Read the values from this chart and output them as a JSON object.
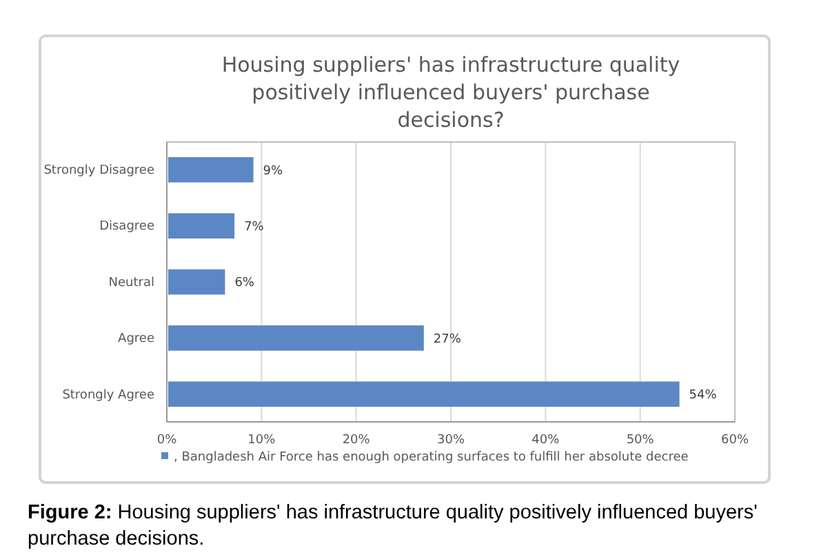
{
  "chart_data": {
    "type": "bar",
    "orientation": "horizontal",
    "title": "Housing suppliers' has infrastructure quality positively influenced buyers' purchase decisions?",
    "categories": [
      "Strongly Disagree",
      "Disagree",
      "Neutral",
      "Agree",
      "Strongly Agree"
    ],
    "series": [
      {
        "name": ", Bangladesh Air Force has enough operating surfaces to fulfill her absolute decree",
        "color": "#5b87c5",
        "values": [
          9,
          7,
          6,
          27,
          54
        ],
        "value_labels": [
          "9%",
          "7%",
          "6%",
          "27%",
          "54%"
        ]
      }
    ],
    "xlim": [
      0,
      60
    ],
    "xticks": [
      {
        "value": 0,
        "label": "0%"
      },
      {
        "value": 10,
        "label": "10%"
      },
      {
        "value": 20,
        "label": "20%"
      },
      {
        "value": 30,
        "label": "30%"
      },
      {
        "value": 40,
        "label": "40%"
      },
      {
        "value": 50,
        "label": "50%"
      },
      {
        "value": 60,
        "label": "60%"
      }
    ],
    "grid": "x",
    "legend": "bottom",
    "annotations": [
      "Figure 2: Housing suppliers' has infrastructure quality positively influenced buyers' purchase decisions."
    ]
  }
}
